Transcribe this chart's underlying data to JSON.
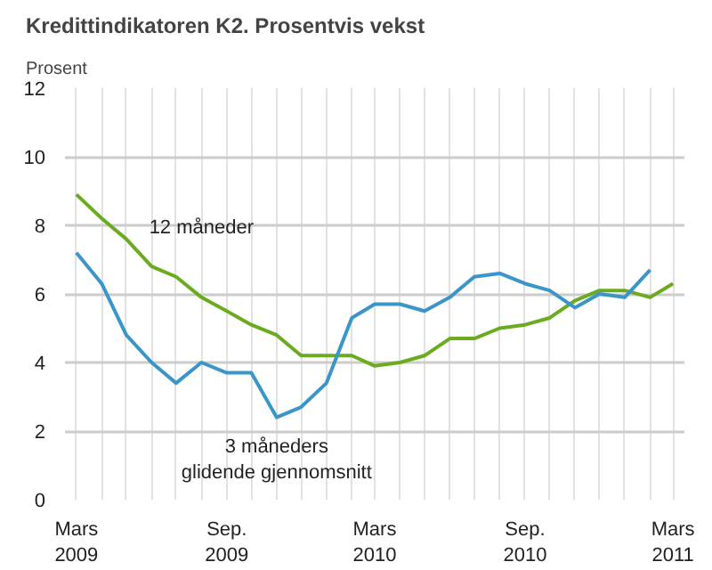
{
  "chart_data": {
    "type": "line",
    "title": "Kredittindikatoren K2. Prosentvis vekst",
    "ylabel": "Prosent",
    "x": [
      "2009-03",
      "2009-04",
      "2009-05",
      "2009-06",
      "2009-07",
      "2009-08",
      "2009-09",
      "2009-10",
      "2009-11",
      "2009-12",
      "2010-01",
      "2010-02",
      "2010-03",
      "2010-04",
      "2010-05",
      "2010-06",
      "2010-07",
      "2010-08",
      "2010-09",
      "2010-10",
      "2010-11",
      "2010-12",
      "2011-01",
      "2011-02",
      "2011-03"
    ],
    "series": [
      {
        "name": "12 måneder",
        "color": "#6aab1f",
        "values": [
          8.9,
          8.2,
          7.6,
          6.8,
          6.5,
          5.9,
          5.5,
          5.1,
          4.8,
          4.2,
          4.2,
          4.2,
          3.9,
          4.0,
          4.2,
          4.7,
          4.7,
          5.0,
          5.1,
          5.3,
          5.8,
          6.1,
          6.1,
          5.9,
          6.3
        ]
      },
      {
        "name": "3 måneders\nglidende gjennomsnitt",
        "color": "#3a95c8",
        "values": [
          7.2,
          6.3,
          4.8,
          4.0,
          3.4,
          4.0,
          3.7,
          3.7,
          2.4,
          2.7,
          3.4,
          5.3,
          5.7,
          5.7,
          5.5,
          5.9,
          6.5,
          6.6,
          6.3,
          6.1,
          5.6,
          6.0,
          5.9,
          6.7,
          null
        ]
      }
    ],
    "xlim": [
      "2009-02-15",
      "2011-03-15"
    ],
    "xticks": [
      {
        "value": "2009-03",
        "label": "Mars\n2009"
      },
      {
        "value": "2009-04",
        "label": null
      },
      {
        "value": "2009-05",
        "label": null
      },
      {
        "value": "2009-06",
        "label": null
      },
      {
        "value": "2009-07",
        "label": null
      },
      {
        "value": "2009-08",
        "label": null
      },
      {
        "value": "2009-09",
        "label": "Sep.\n2009"
      },
      {
        "value": "2009-10",
        "label": null
      },
      {
        "value": "2009-11",
        "label": null
      },
      {
        "value": "2009-12",
        "label": null
      },
      {
        "value": "2010-01",
        "label": null
      },
      {
        "value": "2010-02",
        "label": null
      },
      {
        "value": "2010-03",
        "label": "Mars\n2010"
      },
      {
        "value": "2010-04",
        "label": null
      },
      {
        "value": "2010-05",
        "label": null
      },
      {
        "value": "2010-06",
        "label": null
      },
      {
        "value": "2010-07",
        "label": null
      },
      {
        "value": "2010-08",
        "label": null
      },
      {
        "value": "2010-09",
        "label": "Sep.\n2010"
      },
      {
        "value": "2010-10",
        "label": null
      },
      {
        "value": "2010-11",
        "label": null
      },
      {
        "value": "2010-12",
        "label": null
      },
      {
        "value": "2011-01",
        "label": null
      },
      {
        "value": "2011-02",
        "label": null
      },
      {
        "value": "2011-03",
        "label": "Mars\n2011"
      }
    ],
    "ylim": [
      0,
      12
    ],
    "yticks": [
      0,
      2,
      4,
      6,
      8,
      10,
      12
    ],
    "grid": true,
    "line_style": "solid",
    "marker": "none"
  }
}
